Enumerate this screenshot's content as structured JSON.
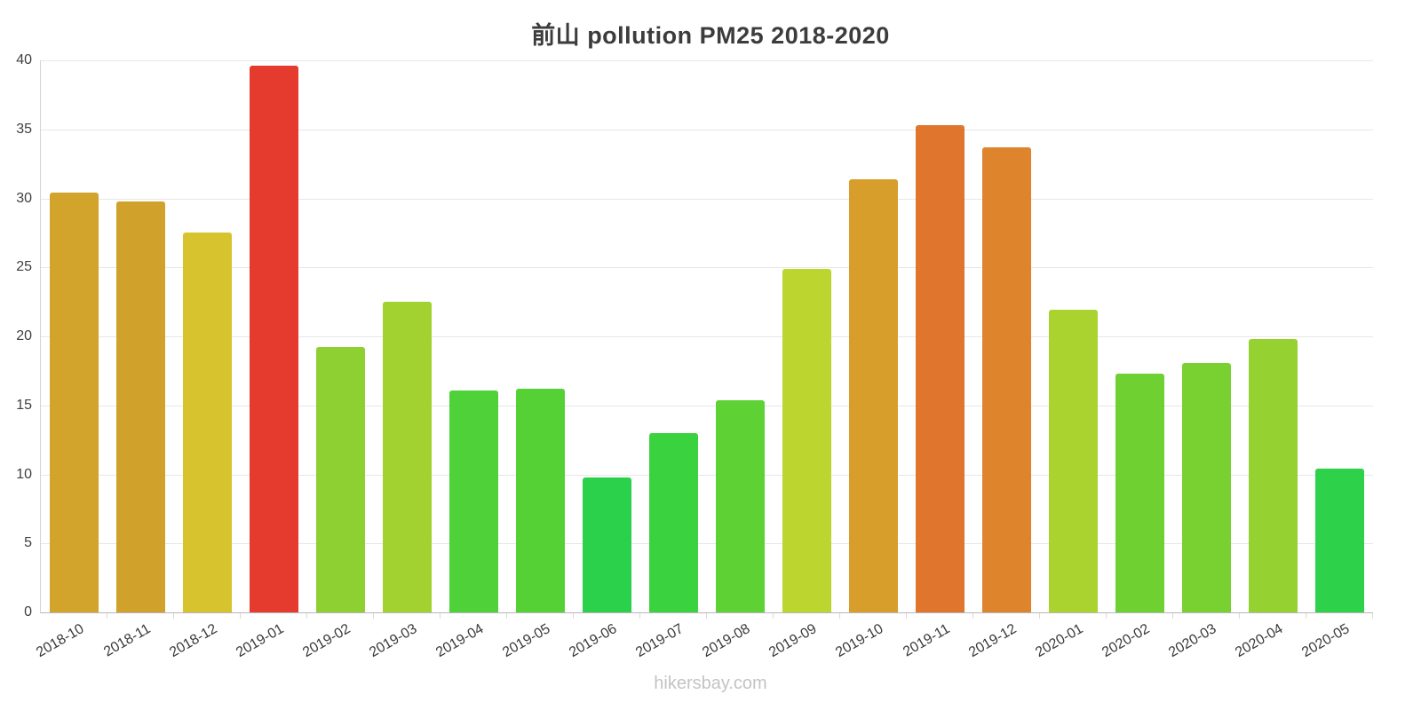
{
  "title": "前山 pollution PM25 2018-2020",
  "footer": "hikersbay.com",
  "colors": {
    "grid": "#e7e7e7",
    "axis_left": "#d4d4d4",
    "axis_bottom": "#b7b7b7",
    "title_text": "#3c3c3c",
    "tick_text": "#3a3a3a",
    "footer_text": "#c3c3c3"
  },
  "chart_data": {
    "type": "bar",
    "title": "前山 pollution PM25 2018-2020",
    "xlabel": "",
    "ylabel": "",
    "ylim": [
      0,
      40
    ],
    "yticks": [
      0,
      5,
      10,
      15,
      20,
      25,
      30,
      35,
      40
    ],
    "grid": "horizontal",
    "legend": "none",
    "categories": [
      "2018-10",
      "2018-11",
      "2018-12",
      "2019-01",
      "2019-02",
      "2019-03",
      "2019-04",
      "2019-05",
      "2019-06",
      "2019-07",
      "2019-08",
      "2019-09",
      "2019-10",
      "2019-11",
      "2019-12",
      "2020-01",
      "2020-02",
      "2020-03",
      "2020-04",
      "2020-05"
    ],
    "values": [
      30.4,
      29.8,
      27.5,
      39.6,
      19.2,
      22.5,
      16.1,
      16.2,
      9.8,
      13.0,
      15.4,
      24.9,
      31.4,
      35.3,
      33.7,
      21.9,
      17.3,
      18.1,
      19.8,
      10.4
    ],
    "bar_colors": [
      "#d2a42b",
      "#d0a22b",
      "#d7c32e",
      "#e53a2e",
      "#8ed032",
      "#a2d22f",
      "#4ed139",
      "#55d136",
      "#2cd14b",
      "#3bd23f",
      "#5ed134",
      "#bdd52f",
      "#d89e2c",
      "#e0762e",
      "#dd842d",
      "#abd330",
      "#6fd032",
      "#79d031",
      "#95d130",
      "#2ed14a"
    ]
  }
}
